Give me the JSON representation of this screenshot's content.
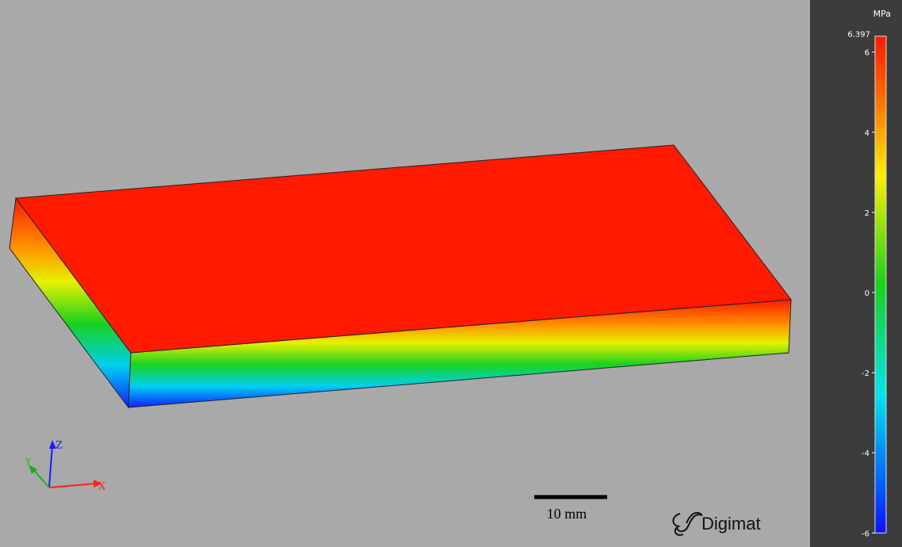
{
  "viewport": {
    "axes": {
      "x": "X",
      "y": "Y",
      "z": "Z"
    },
    "scale_bar": "10 mm",
    "logo": "Digimat"
  },
  "colorbar": {
    "unit": "MPa",
    "range": [
      -6,
      6.397
    ],
    "ticks": [
      6,
      4,
      2,
      0,
      -2,
      -4,
      -6
    ]
  }
}
